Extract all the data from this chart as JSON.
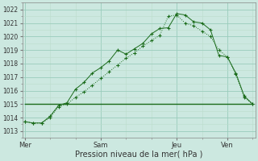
{
  "title": "",
  "xlabel": "Pression niveau de la mer( hPa )",
  "ylim": [
    1012.5,
    1022.5
  ],
  "yticks": [
    1013,
    1014,
    1015,
    1016,
    1017,
    1018,
    1019,
    1020,
    1021,
    1022
  ],
  "bg_color": "#cce8e0",
  "grid_color_major": "#99ccbb",
  "grid_color_minor": "#bbddcc",
  "line_color": "#1a6b1a",
  "xtick_labels": [
    "Mer",
    "Sam",
    "Jeu",
    "Ven"
  ],
  "xtick_positions": [
    0,
    9,
    18,
    24
  ],
  "line1_x": [
    0,
    1,
    2,
    3,
    4,
    5,
    6,
    7,
    8,
    9,
    10,
    11,
    12,
    13,
    14,
    15,
    16,
    17,
    18,
    19,
    20,
    21,
    22,
    23,
    24,
    25,
    26,
    27
  ],
  "line1_y": [
    1013.7,
    1013.6,
    1013.6,
    1014.1,
    1014.9,
    1015.1,
    1016.1,
    1016.6,
    1017.3,
    1017.7,
    1018.2,
    1019.0,
    1018.7,
    1019.1,
    1019.5,
    1020.2,
    1020.6,
    1020.65,
    1021.7,
    1021.6,
    1021.1,
    1021.0,
    1020.5,
    1018.6,
    1018.5,
    1017.3,
    1015.6,
    1015.0
  ],
  "line2_x": [
    0,
    1,
    2,
    3,
    4,
    5,
    6,
    7,
    8,
    9,
    10,
    11,
    12,
    13,
    14,
    15,
    16,
    17,
    18,
    19,
    20,
    21,
    22,
    23,
    24,
    25,
    26,
    27
  ],
  "line2_y": [
    1013.7,
    1013.6,
    1013.6,
    1014.0,
    1014.8,
    1015.0,
    1015.5,
    1015.9,
    1016.4,
    1016.9,
    1017.4,
    1017.9,
    1018.4,
    1018.8,
    1019.3,
    1019.7,
    1020.1,
    1021.5,
    1021.6,
    1021.0,
    1020.8,
    1020.4,
    1020.0,
    1019.0,
    1018.5,
    1017.2,
    1015.5,
    1015.0
  ],
  "line3_x": [
    0,
    9,
    18,
    24,
    27
  ],
  "line3_y": [
    1015.0,
    1015.0,
    1015.0,
    1015.0,
    1015.0
  ],
  "n_points": 28
}
